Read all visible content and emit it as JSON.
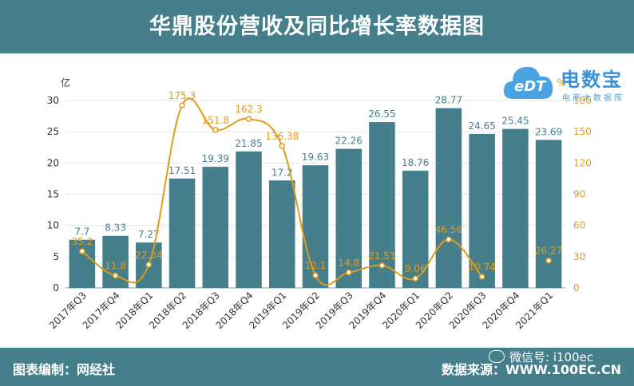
{
  "header": {
    "title": "华鼎股份营收及同比增长率数据图"
  },
  "footer": {
    "left": "图表编制：网经社",
    "right": "数据来源：WWW.100EC.CN",
    "wechat": "微信号: i100ec"
  },
  "logo": {
    "name": "电数宝",
    "subtitle": "电商大数据库",
    "mark": "eDT"
  },
  "chart_data": {
    "type": "bar+line",
    "categories": [
      "2017年Q3",
      "2017年Q4",
      "2018年Q1",
      "2018年Q2",
      "2018年Q3",
      "2018年Q4",
      "2019年Q1",
      "2019年Q2",
      "2019年Q3",
      "2019年Q4",
      "2020年Q1",
      "2020年Q2",
      "2020年Q3",
      "2020年Q4",
      "2021年Q1"
    ],
    "series": [
      {
        "name": "营收",
        "type": "bar",
        "axis": "left",
        "unit": "亿",
        "values": [
          7.7,
          8.33,
          7.27,
          17.51,
          19.39,
          21.85,
          17.2,
          19.63,
          22.26,
          26.55,
          18.76,
          28.77,
          24.65,
          25.45,
          23.69
        ],
        "labels": [
          "7.7",
          "8.33",
          "7.27",
          "17.51",
          "19.39",
          "21.85",
          "17.2",
          "19.63",
          "22.26",
          "26.55",
          "18.76",
          "28.77",
          "24.65",
          "25.45",
          "23.69"
        ]
      },
      {
        "name": "同比增长率",
        "type": "line",
        "axis": "right",
        "unit": "%",
        "values": [
          35.2,
          11.8,
          22.34,
          175.3,
          151.8,
          162.3,
          136.38,
          12.1,
          14.8,
          21.51,
          9.06,
          46.56,
          10.74,
          null,
          26.27
        ],
        "labels": [
          "35.2",
          "11.8",
          "22.34",
          "175.3",
          "151.8",
          "162.3",
          "136.38",
          "12.1",
          "14.8",
          "21.51",
          "9.06",
          "46.56",
          "10.74",
          "",
          "26.27"
        ]
      }
    ],
    "y_left": {
      "label": "亿",
      "min": 0,
      "max": 30,
      "ticks": [
        "0",
        "5",
        "10",
        "15",
        "20",
        "25",
        "30"
      ]
    },
    "y_right": {
      "label": "%",
      "min": 0,
      "max": 180,
      "ticks": [
        "0",
        "30",
        "60",
        "90",
        "120",
        "150",
        "180"
      ]
    },
    "colors": {
      "bar": "#467f8c",
      "line": "#e19b1c",
      "bar_label": "#467f8c",
      "line_label": "#e19b1c",
      "axis_text": "#333333",
      "grid": "#e6e6e6"
    }
  }
}
